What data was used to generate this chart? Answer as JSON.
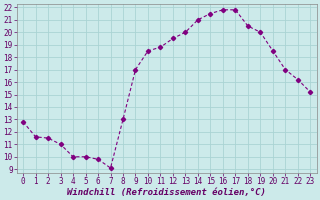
{
  "x": [
    0,
    1,
    2,
    3,
    4,
    5,
    6,
    7,
    8,
    9,
    10,
    11,
    12,
    13,
    14,
    15,
    16,
    17,
    18,
    19,
    20,
    21,
    22,
    23
  ],
  "y": [
    12.8,
    11.6,
    11.5,
    11.0,
    10.0,
    10.0,
    9.8,
    9.1,
    13.0,
    17.0,
    18.5,
    18.8,
    19.5,
    20.0,
    21.0,
    21.5,
    21.8,
    21.8,
    20.5,
    20.0,
    18.5,
    17.0,
    16.2,
    15.2
  ],
  "line_color": "#800080",
  "marker": "D",
  "marker_size": 2.2,
  "bg_color": "#cceaea",
  "grid_color": "#aad4d4",
  "xlabel": "Windchill (Refroidissement éolien,°C)",
  "ylim_min": 9,
  "ylim_max": 22,
  "xlim_min": 0,
  "xlim_max": 23,
  "yticks": [
    9,
    10,
    11,
    12,
    13,
    14,
    15,
    16,
    17,
    18,
    19,
    20,
    21,
    22
  ],
  "xticks": [
    0,
    1,
    2,
    3,
    4,
    5,
    6,
    7,
    8,
    9,
    10,
    11,
    12,
    13,
    14,
    15,
    16,
    17,
    18,
    19,
    20,
    21,
    22,
    23
  ],
  "tick_fontsize": 5.5,
  "xlabel_fontsize": 6.5,
  "linewidth": 0.8
}
